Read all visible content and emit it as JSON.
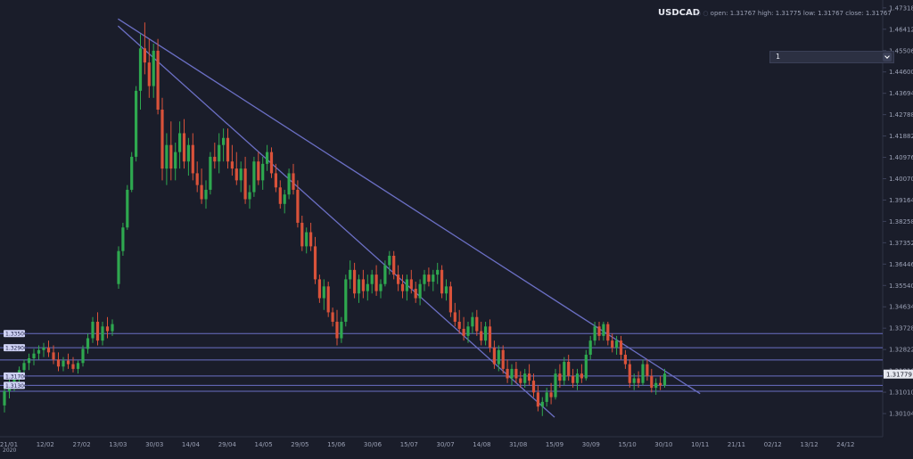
{
  "header": {
    "symbol": "USDCAD",
    "ohlc_text": "open: 1.31767 high: 1.31775 low: 1.31767 close: 1.31767"
  },
  "interval": {
    "value": "1"
  },
  "colors": {
    "background": "#1a1d2a",
    "up": "#2ea84f",
    "down": "#d9523a",
    "trendline": "#6b6fc4",
    "hline": "#6b6fc4"
  },
  "chart_data": {
    "type": "candlestick",
    "title": "USDCAD",
    "ylim": [
      1.295,
      1.4735
    ],
    "y_ticks": [
      "1.47318",
      "1.46412",
      "1.45506",
      "1.44600",
      "1.43694",
      "1.42788",
      "1.41882",
      "1.40976",
      "1.40070",
      "1.39164",
      "1.38258",
      "1.37352",
      "1.36446",
      "1.35540",
      "1.34634",
      "1.33728",
      "1.32822",
      "1.31916",
      "1.31010",
      "1.30104"
    ],
    "x_ticks": [
      "21/01",
      "12/02",
      "27/02",
      "13/03",
      "30/03",
      "14/04",
      "29/04",
      "14/05",
      "29/05",
      "15/06",
      "30/06",
      "15/07",
      "30/07",
      "14/08",
      "31/08",
      "15/09",
      "30/09",
      "15/10",
      "30/10",
      "10/11",
      "21/11",
      "02/12",
      "13/12",
      "24/12"
    ],
    "x_year_label": "2020",
    "last_price_label": "1.31779",
    "hline_labels": [
      "1.33500",
      "1.32900",
      "1.31700",
      "1.31300"
    ],
    "hlines": [
      1.335,
      1.329,
      1.3238,
      1.317,
      1.313,
      1.3105
    ],
    "trendlines": [
      {
        "from": [
          "13/03",
          1.4685
        ],
        "to": [
          "10/11",
          1.3095
        ]
      },
      {
        "from": [
          "13/03",
          1.4655
        ],
        "to": [
          "15/09",
          1.2995
        ]
      }
    ],
    "grid": false,
    "legend": "none",
    "candles": [
      {
        "o": 1.3045,
        "h": 1.3125,
        "l": 1.3015,
        "c": 1.3105
      },
      {
        "o": 1.3105,
        "h": 1.3155,
        "l": 1.3075,
        "c": 1.3135
      },
      {
        "o": 1.3135,
        "h": 1.3175,
        "l": 1.3105,
        "c": 1.316
      },
      {
        "o": 1.316,
        "h": 1.321,
        "l": 1.314,
        "c": 1.3195
      },
      {
        "o": 1.3195,
        "h": 1.324,
        "l": 1.317,
        "c": 1.3225
      },
      {
        "o": 1.3225,
        "h": 1.3265,
        "l": 1.3195,
        "c": 1.3245
      },
      {
        "o": 1.3245,
        "h": 1.3285,
        "l": 1.3215,
        "c": 1.3265
      },
      {
        "o": 1.3265,
        "h": 1.33,
        "l": 1.324,
        "c": 1.328
      },
      {
        "o": 1.328,
        "h": 1.331,
        "l": 1.325,
        "c": 1.329
      },
      {
        "o": 1.329,
        "h": 1.332,
        "l": 1.325,
        "c": 1.327
      },
      {
        "o": 1.327,
        "h": 1.33,
        "l": 1.322,
        "c": 1.324
      },
      {
        "o": 1.324,
        "h": 1.327,
        "l": 1.319,
        "c": 1.321
      },
      {
        "o": 1.321,
        "h": 1.325,
        "l": 1.319,
        "c": 1.3235
      },
      {
        "o": 1.3235,
        "h": 1.3265,
        "l": 1.32,
        "c": 1.322
      },
      {
        "o": 1.322,
        "h": 1.325,
        "l": 1.3185,
        "c": 1.32
      },
      {
        "o": 1.32,
        "h": 1.3235,
        "l": 1.318,
        "c": 1.3225
      },
      {
        "o": 1.3225,
        "h": 1.33,
        "l": 1.321,
        "c": 1.3285
      },
      {
        "o": 1.3285,
        "h": 1.335,
        "l": 1.3265,
        "c": 1.333
      },
      {
        "o": 1.333,
        "h": 1.342,
        "l": 1.331,
        "c": 1.34
      },
      {
        "o": 1.34,
        "h": 1.344,
        "l": 1.33,
        "c": 1.332
      },
      {
        "o": 1.332,
        "h": 1.34,
        "l": 1.33,
        "c": 1.338
      },
      {
        "o": 1.338,
        "h": 1.342,
        "l": 1.333,
        "c": 1.336
      },
      {
        "o": 1.336,
        "h": 1.341,
        "l": 1.334,
        "c": 1.339
      },
      {
        "o": 1.356,
        "h": 1.372,
        "l": 1.354,
        "c": 1.37
      },
      {
        "o": 1.37,
        "h": 1.382,
        "l": 1.368,
        "c": 1.38
      },
      {
        "o": 1.38,
        "h": 1.398,
        "l": 1.379,
        "c": 1.396
      },
      {
        "o": 1.396,
        "h": 1.412,
        "l": 1.395,
        "c": 1.41
      },
      {
        "o": 1.41,
        "h": 1.44,
        "l": 1.408,
        "c": 1.438
      },
      {
        "o": 1.438,
        "h": 1.462,
        "l": 1.43,
        "c": 1.456
      },
      {
        "o": 1.456,
        "h": 1.467,
        "l": 1.445,
        "c": 1.45
      },
      {
        "o": 1.45,
        "h": 1.46,
        "l": 1.435,
        "c": 1.44
      },
      {
        "o": 1.44,
        "h": 1.458,
        "l": 1.435,
        "c": 1.455
      },
      {
        "o": 1.455,
        "h": 1.46,
        "l": 1.428,
        "c": 1.43
      },
      {
        "o": 1.43,
        "h": 1.435,
        "l": 1.4,
        "c": 1.405
      },
      {
        "o": 1.405,
        "h": 1.42,
        "l": 1.398,
        "c": 1.415
      },
      {
        "o": 1.415,
        "h": 1.425,
        "l": 1.4,
        "c": 1.405
      },
      {
        "o": 1.405,
        "h": 1.416,
        "l": 1.4,
        "c": 1.412
      },
      {
        "o": 1.412,
        "h": 1.425,
        "l": 1.405,
        "c": 1.42
      },
      {
        "o": 1.42,
        "h": 1.426,
        "l": 1.405,
        "c": 1.408
      },
      {
        "o": 1.408,
        "h": 1.418,
        "l": 1.402,
        "c": 1.415
      },
      {
        "o": 1.415,
        "h": 1.42,
        "l": 1.4,
        "c": 1.403
      },
      {
        "o": 1.403,
        "h": 1.408,
        "l": 1.395,
        "c": 1.398
      },
      {
        "o": 1.398,
        "h": 1.405,
        "l": 1.39,
        "c": 1.392
      },
      {
        "o": 1.392,
        "h": 1.4,
        "l": 1.388,
        "c": 1.396
      },
      {
        "o": 1.396,
        "h": 1.412,
        "l": 1.394,
        "c": 1.41
      },
      {
        "o": 1.41,
        "h": 1.416,
        "l": 1.405,
        "c": 1.408
      },
      {
        "o": 1.408,
        "h": 1.42,
        "l": 1.403,
        "c": 1.415
      },
      {
        "o": 1.415,
        "h": 1.422,
        "l": 1.408,
        "c": 1.418
      },
      {
        "o": 1.418,
        "h": 1.422,
        "l": 1.405,
        "c": 1.408
      },
      {
        "o": 1.408,
        "h": 1.415,
        "l": 1.402,
        "c": 1.405
      },
      {
        "o": 1.405,
        "h": 1.412,
        "l": 1.398,
        "c": 1.4
      },
      {
        "o": 1.4,
        "h": 1.408,
        "l": 1.395,
        "c": 1.405
      },
      {
        "o": 1.405,
        "h": 1.41,
        "l": 1.39,
        "c": 1.392
      },
      {
        "o": 1.392,
        "h": 1.398,
        "l": 1.388,
        "c": 1.395
      },
      {
        "o": 1.395,
        "h": 1.41,
        "l": 1.393,
        "c": 1.408
      },
      {
        "o": 1.408,
        "h": 1.412,
        "l": 1.398,
        "c": 1.4
      },
      {
        "o": 1.4,
        "h": 1.41,
        "l": 1.396,
        "c": 1.407
      },
      {
        "o": 1.407,
        "h": 1.415,
        "l": 1.404,
        "c": 1.412
      },
      {
        "o": 1.412,
        "h": 1.414,
        "l": 1.401,
        "c": 1.403
      },
      {
        "o": 1.403,
        "h": 1.407,
        "l": 1.395,
        "c": 1.397
      },
      {
        "o": 1.397,
        "h": 1.4,
        "l": 1.388,
        "c": 1.39
      },
      {
        "o": 1.39,
        "h": 1.396,
        "l": 1.386,
        "c": 1.394
      },
      {
        "o": 1.394,
        "h": 1.405,
        "l": 1.392,
        "c": 1.403
      },
      {
        "o": 1.403,
        "h": 1.407,
        "l": 1.394,
        "c": 1.396
      },
      {
        "o": 1.396,
        "h": 1.4,
        "l": 1.38,
        "c": 1.382
      },
      {
        "o": 1.382,
        "h": 1.385,
        "l": 1.37,
        "c": 1.372
      },
      {
        "o": 1.372,
        "h": 1.38,
        "l": 1.369,
        "c": 1.378
      },
      {
        "o": 1.378,
        "h": 1.382,
        "l": 1.37,
        "c": 1.372
      },
      {
        "o": 1.372,
        "h": 1.376,
        "l": 1.356,
        "c": 1.358
      },
      {
        "o": 1.358,
        "h": 1.36,
        "l": 1.348,
        "c": 1.35
      },
      {
        "o": 1.35,
        "h": 1.358,
        "l": 1.345,
        "c": 1.355
      },
      {
        "o": 1.355,
        "h": 1.357,
        "l": 1.342,
        "c": 1.344
      },
      {
        "o": 1.344,
        "h": 1.346,
        "l": 1.338,
        "c": 1.34
      },
      {
        "o": 1.34,
        "h": 1.345,
        "l": 1.33,
        "c": 1.333
      },
      {
        "o": 1.333,
        "h": 1.342,
        "l": 1.331,
        "c": 1.34
      },
      {
        "o": 1.34,
        "h": 1.36,
        "l": 1.338,
        "c": 1.358
      },
      {
        "o": 1.358,
        "h": 1.366,
        "l": 1.354,
        "c": 1.362
      },
      {
        "o": 1.362,
        "h": 1.365,
        "l": 1.35,
        "c": 1.352
      },
      {
        "o": 1.352,
        "h": 1.36,
        "l": 1.348,
        "c": 1.358
      },
      {
        "o": 1.358,
        "h": 1.362,
        "l": 1.35,
        "c": 1.353
      },
      {
        "o": 1.353,
        "h": 1.36,
        "l": 1.349,
        "c": 1.356
      },
      {
        "o": 1.356,
        "h": 1.362,
        "l": 1.352,
        "c": 1.36
      },
      {
        "o": 1.36,
        "h": 1.364,
        "l": 1.351,
        "c": 1.353
      },
      {
        "o": 1.353,
        "h": 1.358,
        "l": 1.35,
        "c": 1.356
      },
      {
        "o": 1.356,
        "h": 1.366,
        "l": 1.355,
        "c": 1.364
      },
      {
        "o": 1.364,
        "h": 1.37,
        "l": 1.36,
        "c": 1.368
      },
      {
        "o": 1.368,
        "h": 1.37,
        "l": 1.358,
        "c": 1.36
      },
      {
        "o": 1.36,
        "h": 1.364,
        "l": 1.353,
        "c": 1.356
      },
      {
        "o": 1.356,
        "h": 1.36,
        "l": 1.35,
        "c": 1.353
      },
      {
        "o": 1.353,
        "h": 1.36,
        "l": 1.349,
        "c": 1.358
      },
      {
        "o": 1.358,
        "h": 1.362,
        "l": 1.352,
        "c": 1.354
      },
      {
        "o": 1.354,
        "h": 1.357,
        "l": 1.348,
        "c": 1.35
      },
      {
        "o": 1.35,
        "h": 1.358,
        "l": 1.347,
        "c": 1.356
      },
      {
        "o": 1.356,
        "h": 1.362,
        "l": 1.353,
        "c": 1.36
      },
      {
        "o": 1.36,
        "h": 1.363,
        "l": 1.355,
        "c": 1.357
      },
      {
        "o": 1.357,
        "h": 1.362,
        "l": 1.353,
        "c": 1.36
      },
      {
        "o": 1.36,
        "h": 1.365,
        "l": 1.356,
        "c": 1.362
      },
      {
        "o": 1.362,
        "h": 1.364,
        "l": 1.35,
        "c": 1.352
      },
      {
        "o": 1.352,
        "h": 1.358,
        "l": 1.349,
        "c": 1.355
      },
      {
        "o": 1.355,
        "h": 1.357,
        "l": 1.342,
        "c": 1.344
      },
      {
        "o": 1.344,
        "h": 1.348,
        "l": 1.338,
        "c": 1.34
      },
      {
        "o": 1.34,
        "h": 1.345,
        "l": 1.335,
        "c": 1.337
      },
      {
        "o": 1.337,
        "h": 1.342,
        "l": 1.332,
        "c": 1.334
      },
      {
        "o": 1.334,
        "h": 1.34,
        "l": 1.331,
        "c": 1.338
      },
      {
        "o": 1.338,
        "h": 1.344,
        "l": 1.335,
        "c": 1.342
      },
      {
        "o": 1.342,
        "h": 1.345,
        "l": 1.334,
        "c": 1.336
      },
      {
        "o": 1.336,
        "h": 1.34,
        "l": 1.33,
        "c": 1.332
      },
      {
        "o": 1.332,
        "h": 1.34,
        "l": 1.33,
        "c": 1.338
      },
      {
        "o": 1.338,
        "h": 1.341,
        "l": 1.327,
        "c": 1.329
      },
      {
        "o": 1.329,
        "h": 1.332,
        "l": 1.32,
        "c": 1.322
      },
      {
        "o": 1.322,
        "h": 1.33,
        "l": 1.319,
        "c": 1.328
      },
      {
        "o": 1.328,
        "h": 1.33,
        "l": 1.318,
        "c": 1.32
      },
      {
        "o": 1.32,
        "h": 1.324,
        "l": 1.314,
        "c": 1.316
      },
      {
        "o": 1.316,
        "h": 1.322,
        "l": 1.313,
        "c": 1.32
      },
      {
        "o": 1.32,
        "h": 1.323,
        "l": 1.314,
        "c": 1.316
      },
      {
        "o": 1.316,
        "h": 1.319,
        "l": 1.312,
        "c": 1.314
      },
      {
        "o": 1.314,
        "h": 1.32,
        "l": 1.312,
        "c": 1.318
      },
      {
        "o": 1.318,
        "h": 1.322,
        "l": 1.313,
        "c": 1.315
      },
      {
        "o": 1.315,
        "h": 1.318,
        "l": 1.308,
        "c": 1.31
      },
      {
        "o": 1.31,
        "h": 1.313,
        "l": 1.302,
        "c": 1.304
      },
      {
        "o": 1.304,
        "h": 1.308,
        "l": 1.3,
        "c": 1.306
      },
      {
        "o": 1.306,
        "h": 1.312,
        "l": 1.304,
        "c": 1.31
      },
      {
        "o": 1.31,
        "h": 1.314,
        "l": 1.305,
        "c": 1.308
      },
      {
        "o": 1.308,
        "h": 1.32,
        "l": 1.307,
        "c": 1.318
      },
      {
        "o": 1.318,
        "h": 1.322,
        "l": 1.312,
        "c": 1.315
      },
      {
        "o": 1.315,
        "h": 1.325,
        "l": 1.313,
        "c": 1.323
      },
      {
        "o": 1.323,
        "h": 1.326,
        "l": 1.315,
        "c": 1.317
      },
      {
        "o": 1.317,
        "h": 1.32,
        "l": 1.312,
        "c": 1.314
      },
      {
        "o": 1.314,
        "h": 1.32,
        "l": 1.311,
        "c": 1.318
      },
      {
        "o": 1.318,
        "h": 1.322,
        "l": 1.314,
        "c": 1.316
      },
      {
        "o": 1.316,
        "h": 1.328,
        "l": 1.315,
        "c": 1.326
      },
      {
        "o": 1.326,
        "h": 1.334,
        "l": 1.324,
        "c": 1.332
      },
      {
        "o": 1.332,
        "h": 1.34,
        "l": 1.33,
        "c": 1.338
      },
      {
        "o": 1.338,
        "h": 1.34,
        "l": 1.332,
        "c": 1.334
      },
      {
        "o": 1.334,
        "h": 1.34,
        "l": 1.332,
        "c": 1.339
      },
      {
        "o": 1.339,
        "h": 1.34,
        "l": 1.33,
        "c": 1.332
      },
      {
        "o": 1.332,
        "h": 1.335,
        "l": 1.327,
        "c": 1.329
      },
      {
        "o": 1.329,
        "h": 1.334,
        "l": 1.326,
        "c": 1.332
      },
      {
        "o": 1.332,
        "h": 1.334,
        "l": 1.324,
        "c": 1.326
      },
      {
        "o": 1.326,
        "h": 1.328,
        "l": 1.32,
        "c": 1.322
      },
      {
        "o": 1.322,
        "h": 1.324,
        "l": 1.312,
        "c": 1.314
      },
      {
        "o": 1.314,
        "h": 1.318,
        "l": 1.311,
        "c": 1.316
      },
      {
        "o": 1.316,
        "h": 1.319,
        "l": 1.312,
        "c": 1.314
      },
      {
        "o": 1.314,
        "h": 1.324,
        "l": 1.313,
        "c": 1.322
      },
      {
        "o": 1.322,
        "h": 1.324,
        "l": 1.315,
        "c": 1.317
      },
      {
        "o": 1.317,
        "h": 1.32,
        "l": 1.31,
        "c": 1.312
      },
      {
        "o": 1.312,
        "h": 1.316,
        "l": 1.309,
        "c": 1.314
      },
      {
        "o": 1.314,
        "h": 1.317,
        "l": 1.311,
        "c": 1.313
      },
      {
        "o": 1.313,
        "h": 1.32,
        "l": 1.312,
        "c": 1.318
      }
    ]
  }
}
